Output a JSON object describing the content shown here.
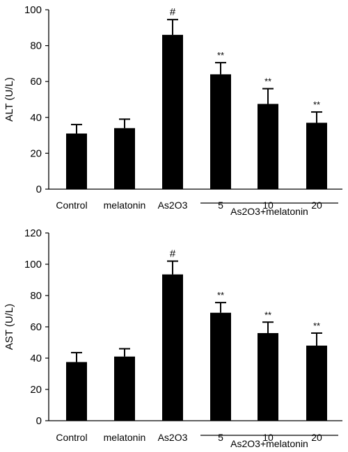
{
  "chart_data": [
    {
      "type": "bar",
      "ylabel": "ALT (U/L)",
      "ylim": [
        0,
        100
      ],
      "yticks": [
        0,
        20,
        40,
        60,
        80,
        100
      ],
      "categories": [
        "Control",
        "melatonin",
        "As2O3",
        "5",
        "10",
        "20"
      ],
      "values": [
        31,
        34,
        86,
        64,
        47.5,
        37
      ],
      "errors": [
        5,
        5,
        8.5,
        6.5,
        8.5,
        6
      ],
      "annotations": [
        "",
        "",
        "#",
        "**",
        "**",
        "**"
      ],
      "group_label": "As2O3+melatonin",
      "bar_color": "#000000"
    },
    {
      "type": "bar",
      "ylabel": "AST (U/L)",
      "ylim": [
        0,
        120
      ],
      "yticks": [
        0,
        20,
        40,
        60,
        80,
        100,
        120
      ],
      "categories": [
        "Control",
        "melatonin",
        "As2O3",
        "5",
        "10",
        "20"
      ],
      "values": [
        37.5,
        41,
        93.5,
        69,
        56,
        48
      ],
      "errors": [
        6,
        5,
        8.5,
        6.5,
        7,
        8
      ],
      "annotations": [
        "",
        "",
        "#",
        "**",
        "**",
        "**"
      ],
      "group_label": "As2O3+melatonin",
      "bar_color": "#000000"
    }
  ]
}
